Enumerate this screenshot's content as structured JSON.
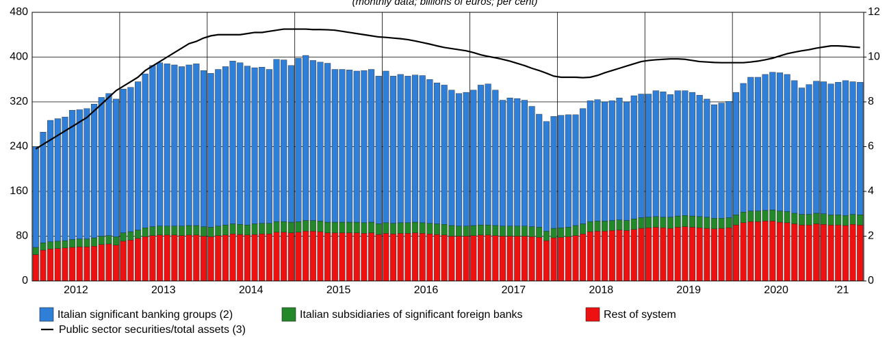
{
  "chart_data": {
    "type": "stacked_bar_line",
    "subtitle": "(monthly data; billions of euros; per cent)",
    "categories": [
      null,
      null,
      null,
      null,
      null,
      "2012",
      null,
      null,
      null,
      null,
      null,
      null,
      null,
      null,
      null,
      null,
      null,
      "2013",
      null,
      null,
      null,
      null,
      null,
      null,
      null,
      null,
      null,
      null,
      null,
      "2014",
      null,
      null,
      null,
      null,
      null,
      null,
      null,
      null,
      null,
      null,
      null,
      "2015",
      null,
      null,
      null,
      null,
      null,
      null,
      null,
      null,
      null,
      null,
      null,
      "2016",
      null,
      null,
      null,
      null,
      null,
      null,
      null,
      null,
      null,
      null,
      null,
      "2017",
      null,
      null,
      null,
      null,
      null,
      null,
      null,
      null,
      null,
      null,
      null,
      "2018",
      null,
      null,
      null,
      null,
      null,
      null,
      null,
      null,
      null,
      null,
      null,
      "2019",
      null,
      null,
      null,
      null,
      null,
      null,
      null,
      null,
      null,
      null,
      null,
      "2020",
      null,
      null,
      null,
      null,
      null,
      null,
      null,
      null,
      "'21",
      null,
      null,
      null
    ],
    "series": [
      {
        "name": "Italian significant banking groups (2)",
        "color": "#2f7ed8",
        "values": [
          180,
          198,
          217,
          219,
          221,
          231,
          231,
          233,
          239,
          248,
          254,
          246,
          257,
          258,
          265,
          275,
          288,
          292,
          290,
          288,
          285,
          287,
          289,
          279,
          275,
          280,
          283,
          291,
          289,
          284,
          279,
          279,
          275,
          290,
          289,
          280,
          292,
          295,
          286,
          284,
          284,
          273,
          273,
          272,
          270,
          272,
          273,
          264,
          271,
          263,
          265,
          262,
          263,
          263,
          257,
          252,
          249,
          242,
          237,
          239,
          242,
          250,
          252,
          242,
          225,
          229,
          228,
          225,
          215,
          202,
          196,
          200,
          201,
          201,
          198,
          206,
          216,
          217,
          213,
          214,
          218,
          212,
          220,
          221,
          220,
          225,
          224,
          219,
          224,
          223,
          221,
          217,
          211,
          203,
          206,
          208,
          219,
          230,
          239,
          239,
          243,
          246,
          247,
          245,
          237,
          226,
          232,
          236,
          236,
          234,
          237,
          241,
          237,
          237
        ]
      },
      {
        "name": "Italian subsidiaries of significant foreign banks",
        "color": "#22882a",
        "values": [
          13,
          13,
          13,
          13,
          13,
          14,
          14,
          14,
          15,
          15,
          15,
          15,
          15,
          15,
          15,
          16,
          16,
          16,
          16,
          16,
          17,
          17,
          17,
          17,
          17,
          17,
          18,
          18,
          18,
          18,
          19,
          19,
          19,
          19,
          19,
          19,
          19,
          19,
          19,
          19,
          19,
          19,
          19,
          19,
          19,
          19,
          19,
          19,
          19,
          19,
          19,
          19,
          19,
          19,
          19,
          19,
          19,
          19,
          18,
          18,
          18,
          18,
          18,
          18,
          18,
          18,
          18,
          18,
          18,
          18,
          17,
          17,
          17,
          17,
          18,
          18,
          18,
          18,
          18,
          18,
          18,
          18,
          19,
          19,
          19,
          19,
          19,
          20,
          20,
          20,
          20,
          20,
          20,
          19,
          18,
          18,
          18,
          19,
          19,
          19,
          19,
          20,
          20,
          20,
          19,
          19,
          19,
          19,
          19,
          18,
          18,
          18,
          18,
          18
        ]
      },
      {
        "name": "Rest of system",
        "color": "#ee1111",
        "values": [
          47,
          55,
          57,
          58,
          59,
          60,
          61,
          61,
          62,
          65,
          66,
          64,
          71,
          73,
          76,
          79,
          81,
          82,
          82,
          82,
          81,
          82,
          82,
          80,
          79,
          81,
          82,
          84,
          83,
          82,
          83,
          84,
          84,
          87,
          87,
          86,
          87,
          89,
          89,
          88,
          86,
          86,
          86,
          86,
          86,
          85,
          86,
          83,
          85,
          84,
          85,
          85,
          86,
          85,
          84,
          83,
          82,
          80,
          80,
          80,
          81,
          82,
          82,
          81,
          80,
          80,
          80,
          80,
          79,
          78,
          72,
          77,
          78,
          79,
          81,
          84,
          88,
          89,
          89,
          90,
          91,
          90,
          92,
          94,
          95,
          96,
          95,
          94,
          96,
          97,
          96,
          95,
          94,
          93,
          94,
          95,
          100,
          104,
          106,
          106,
          107,
          107,
          105,
          104,
          102,
          100,
          100,
          102,
          101,
          100,
          100,
          99,
          101,
          100
        ]
      },
      {
        "name": "Public sector securities/total assets (3)",
        "color": "#000000",
        "axis": "y2",
        "values": [
          5.9,
          6.1,
          6.3,
          6.5,
          6.7,
          6.9,
          7.1,
          7.3,
          7.6,
          7.9,
          8.2,
          8.5,
          8.7,
          8.9,
          9.1,
          9.4,
          9.6,
          9.8,
          10.0,
          10.2,
          10.4,
          10.6,
          10.7,
          10.85,
          10.95,
          11.0,
          11.0,
          11.0,
          11.0,
          11.05,
          11.1,
          11.1,
          11.15,
          11.2,
          11.25,
          11.25,
          11.25,
          11.25,
          11.23,
          11.23,
          11.22,
          11.2,
          11.15,
          11.1,
          11.05,
          11.0,
          10.95,
          10.9,
          10.88,
          10.85,
          10.82,
          10.78,
          10.72,
          10.65,
          10.58,
          10.5,
          10.43,
          10.38,
          10.33,
          10.28,
          10.2,
          10.1,
          10.03,
          9.97,
          9.9,
          9.82,
          9.72,
          9.62,
          9.5,
          9.4,
          9.28,
          9.15,
          9.1,
          9.1,
          9.1,
          9.08,
          9.1,
          9.18,
          9.3,
          9.4,
          9.5,
          9.6,
          9.7,
          9.8,
          9.85,
          9.88,
          9.9,
          9.92,
          9.92,
          9.9,
          9.85,
          9.8,
          9.78,
          9.76,
          9.75,
          9.75,
          9.75,
          9.75,
          9.78,
          9.82,
          9.88,
          9.95,
          10.05,
          10.15,
          10.22,
          10.28,
          10.33,
          10.4,
          10.45,
          10.5,
          10.5,
          10.48,
          10.45,
          10.43
        ]
      }
    ],
    "ylim": [
      0,
      480
    ],
    "yticks": [
      0,
      80,
      160,
      240,
      320,
      400,
      480
    ],
    "y2lim": [
      0,
      12
    ],
    "y2ticks": [
      0,
      2,
      4,
      6,
      8,
      10,
      12
    ],
    "grid": true
  }
}
